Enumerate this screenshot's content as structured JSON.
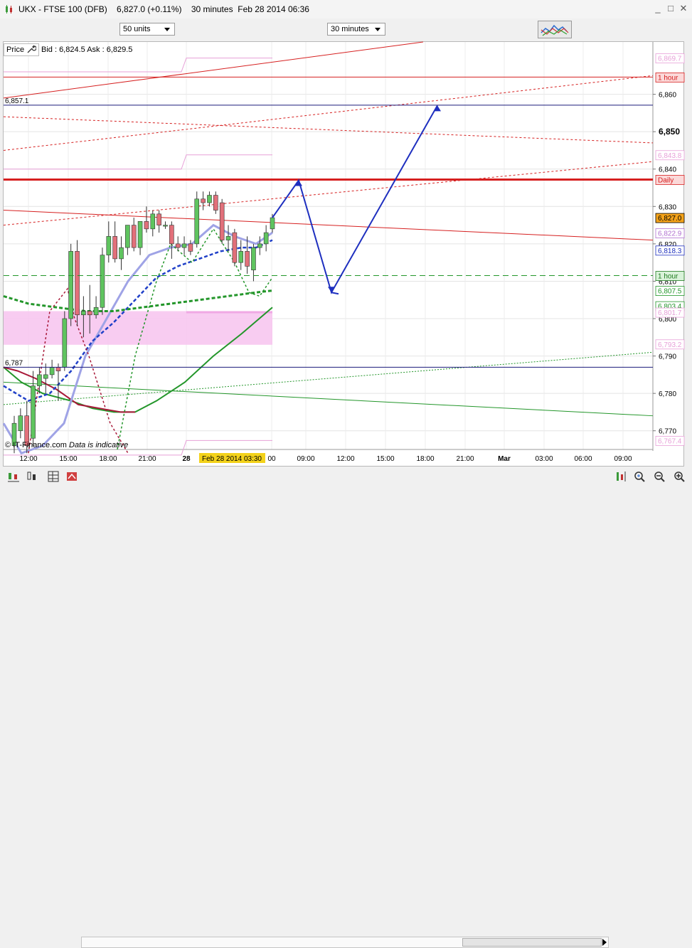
{
  "window": {
    "title": "UKX - FTSE 100 (DFB)    6,827.0 (+0.11%)    30 minutes  Feb 28 2014 06:36",
    "minimize": "_",
    "restore": "□",
    "close": "✕"
  },
  "toolbar": {
    "size_select": "50 units",
    "interval_select": "30 minutes",
    "indicator_icon": "indicators-icon"
  },
  "price_panel": {
    "label": "Price",
    "bid_ask": "Bid : 6,824.5  Ask : 6,829.5"
  },
  "footer": {
    "copyright": "© IT-Finance.com",
    "note": "Data is indicative"
  },
  "colors": {
    "candle_up": "#5fc45f",
    "candle_down": "#e2707a",
    "red_line": "#d62020",
    "navy_line": "#1a1a7a",
    "blue_arrow": "#1e2fbf",
    "ma_lavender": "#9fa3e6",
    "ma_green": "#23962a",
    "ma_darkred": "#a81838",
    "band_pink": "#f7c6f0"
  },
  "chart_data": {
    "type": "candlestick",
    "y_axis": {
      "ticks": [
        "6,770",
        "6,780",
        "6,790",
        "6,800",
        "6,810",
        "6,820",
        "6,830",
        "6,840",
        "6,850",
        "6,860"
      ],
      "major_tick": "6,850",
      "range": [
        6765,
        6874
      ]
    },
    "x_axis": {
      "ticks": [
        "12:00",
        "15:00",
        "18:00",
        "21:00",
        "28",
        "00",
        "09:00",
        "12:00",
        "15:00",
        "18:00",
        "21:00",
        "Mar",
        "03:00",
        "06:00",
        "09:00"
      ],
      "highlight": "Feb 28 2014 03:30"
    },
    "candles": [
      {
        "o": 6766,
        "h": 6774,
        "l": 6764,
        "c": 6772
      },
      {
        "o": 6770,
        "h": 6776,
        "l": 6768,
        "c": 6774
      },
      {
        "o": 6774,
        "h": 6778,
        "l": 6764,
        "c": 6766
      },
      {
        "o": 6768,
        "h": 6786,
        "l": 6766,
        "c": 6782
      },
      {
        "o": 6782,
        "h": 6787,
        "l": 6780,
        "c": 6785
      },
      {
        "o": 6784,
        "h": 6788,
        "l": 6780,
        "c": 6785
      },
      {
        "o": 6785,
        "h": 6789,
        "l": 6784,
        "c": 6787
      },
      {
        "o": 6787,
        "h": 6788,
        "l": 6778,
        "c": 6786
      },
      {
        "o": 6787,
        "h": 6802,
        "l": 6786,
        "c": 6800
      },
      {
        "o": 6800,
        "h": 6820,
        "l": 6798,
        "c": 6818
      },
      {
        "o": 6818,
        "h": 6821,
        "l": 6798,
        "c": 6801
      },
      {
        "o": 6801,
        "h": 6806,
        "l": 6795,
        "c": 6802
      },
      {
        "o": 6802,
        "h": 6809,
        "l": 6796,
        "c": 6801
      },
      {
        "o": 6801,
        "h": 6806,
        "l": 6800,
        "c": 6803
      },
      {
        "o": 6803,
        "h": 6819,
        "l": 6801,
        "c": 6817
      },
      {
        "o": 6817,
        "h": 6826,
        "l": 6815,
        "c": 6822
      },
      {
        "o": 6822,
        "h": 6826,
        "l": 6815,
        "c": 6816
      },
      {
        "o": 6816,
        "h": 6822,
        "l": 6813,
        "c": 6819
      },
      {
        "o": 6819,
        "h": 6825,
        "l": 6817,
        "c": 6825
      },
      {
        "o": 6825,
        "h": 6827,
        "l": 6818,
        "c": 6819
      },
      {
        "o": 6819,
        "h": 6826,
        "l": 6817,
        "c": 6826
      },
      {
        "o": 6826,
        "h": 6830,
        "l": 6823,
        "c": 6824
      },
      {
        "o": 6824,
        "h": 6829,
        "l": 6822,
        "c": 6828
      },
      {
        "o": 6828,
        "h": 6829,
        "l": 6823,
        "c": 6825
      },
      {
        "o": 6825,
        "h": 6826,
        "l": 6824,
        "c": 6825
      },
      {
        "o": 6825,
        "h": 6826,
        "l": 6816,
        "c": 6820
      },
      {
        "o": 6820,
        "h": 6822,
        "l": 6818,
        "c": 6819
      },
      {
        "o": 6819,
        "h": 6822,
        "l": 6817,
        "c": 6820
      },
      {
        "o": 6820,
        "h": 6821,
        "l": 6817,
        "c": 6818
      },
      {
        "o": 6820,
        "h": 6834,
        "l": 6819,
        "c": 6832
      },
      {
        "o": 6832,
        "h": 6834,
        "l": 6829,
        "c": 6831
      },
      {
        "o": 6831,
        "h": 6834,
        "l": 6830,
        "c": 6833
      },
      {
        "o": 6833,
        "h": 6834,
        "l": 6828,
        "c": 6829
      },
      {
        "o": 6831,
        "h": 6832,
        "l": 6820,
        "c": 6821
      },
      {
        "o": 6821,
        "h": 6825,
        "l": 6818,
        "c": 6822
      },
      {
        "o": 6823,
        "h": 6824,
        "l": 6814,
        "c": 6815
      },
      {
        "o": 6815,
        "h": 6821,
        "l": 6813,
        "c": 6818
      },
      {
        "o": 6818,
        "h": 6822,
        "l": 6812,
        "c": 6814
      },
      {
        "o": 6813,
        "h": 6820,
        "l": 6810,
        "c": 6819
      },
      {
        "o": 6819,
        "h": 6822,
        "l": 6817,
        "c": 6820
      },
      {
        "o": 6820,
        "h": 6825,
        "l": 6818,
        "c": 6823
      },
      {
        "o": 6824,
        "h": 6828,
        "l": 6823,
        "c": 6827
      }
    ],
    "price_labels": [
      {
        "text": "6,869.7",
        "value": 6869.7,
        "color": "#e7a0d8",
        "filled": false
      },
      {
        "text": "1 hour",
        "value": 6864.6,
        "color": "#d62020",
        "filled": true,
        "bg": "#fbd9d9"
      },
      {
        "text": "6,843.8",
        "value": 6843.8,
        "color": "#e7a0d8",
        "filled": false
      },
      {
        "text": "Daily",
        "value": 6837.2,
        "color": "#d62020",
        "filled": true,
        "bg": "#fbd9d9"
      },
      {
        "text": "6,827.0",
        "value": 6827.0,
        "color": "#000000",
        "filled": true,
        "bg": "#f5a31a"
      },
      {
        "text": "6,822.9",
        "value": 6822.9,
        "color": "#b070d0",
        "filled": false
      },
      {
        "text": "6,818.3",
        "value": 6818.3,
        "color": "#1e2fbf",
        "filled": false
      },
      {
        "text": "1 hour",
        "value": 6811.5,
        "color": "#1e7a1e",
        "filled": true,
        "bg": "#d9f2d9"
      },
      {
        "text": "6,807.5",
        "value": 6807.5,
        "color": "#23962a",
        "filled": false
      },
      {
        "text": "6,803.4",
        "value": 6803.4,
        "color": "#23962a",
        "filled": false
      },
      {
        "text": "6,801.7",
        "value": 6801.7,
        "color": "#e7a0d8",
        "filled": false
      },
      {
        "text": "6,793.2",
        "value": 6793.2,
        "color": "#e7a0d8",
        "filled": false
      },
      {
        "text": "6,767.4",
        "value": 6767.4,
        "color": "#e7a0d8",
        "filled": false
      }
    ],
    "horizontal_levels": [
      {
        "label": "6,857.1",
        "value": 6857.1,
        "color": "#1a1a7a"
      },
      {
        "label": "6,787",
        "value": 6787,
        "color": "#1a1a7a"
      },
      {
        "label": "",
        "value": 6837.2,
        "color": "#d62020",
        "style": "thick"
      },
      {
        "label": "",
        "value": 6864.6,
        "color": "#d62020",
        "style": "thin"
      },
      {
        "label": "",
        "value": 6811.5,
        "color": "#23962a",
        "style": "dashed"
      }
    ],
    "projection_arrow": [
      6827,
      6837,
      6807,
      6857
    ]
  }
}
